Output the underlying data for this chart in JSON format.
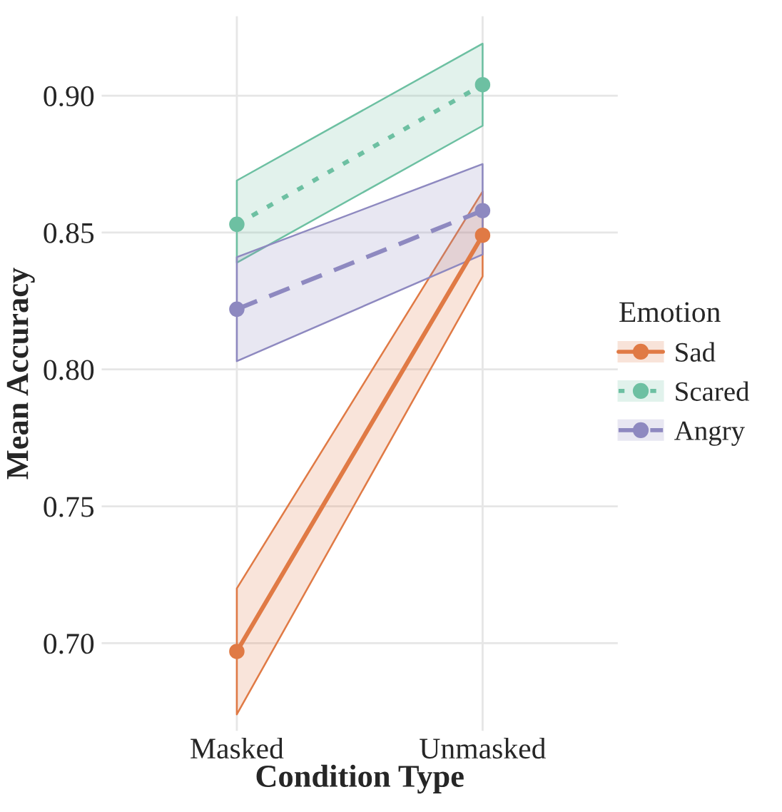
{
  "chart_data": {
    "type": "line",
    "xlabel": "Condition Type",
    "ylabel": "Mean Accuracy",
    "legend_title": "Emotion",
    "categories": [
      "Masked",
      "Unmasked"
    ],
    "series": [
      {
        "name": "Sad",
        "color": "#e07a45",
        "values": [
          0.697,
          0.849
        ],
        "lower": [
          0.674,
          0.834
        ],
        "upper": [
          0.72,
          0.865
        ],
        "line_style": "solid"
      },
      {
        "name": "Scared",
        "color": "#6dc0a2",
        "values": [
          0.853,
          0.904
        ],
        "lower": [
          0.839,
          0.889
        ],
        "upper": [
          0.869,
          0.919
        ],
        "line_style": "dotted"
      },
      {
        "name": "Angry",
        "color": "#8e89c0",
        "values": [
          0.822,
          0.858
        ],
        "lower": [
          0.803,
          0.842
        ],
        "upper": [
          0.841,
          0.875
        ],
        "line_style": "dashed"
      }
    ],
    "ylim": [
      0.668,
      0.929
    ],
    "yticks": [
      {
        "value": 0.7,
        "label": "0.70"
      },
      {
        "value": 0.75,
        "label": "0.75"
      },
      {
        "value": 0.8,
        "label": "0.80"
      },
      {
        "value": 0.85,
        "label": "0.85"
      },
      {
        "value": 0.9,
        "label": "0.90"
      }
    ],
    "grid": true,
    "legend": "right",
    "marker": "circle"
  }
}
